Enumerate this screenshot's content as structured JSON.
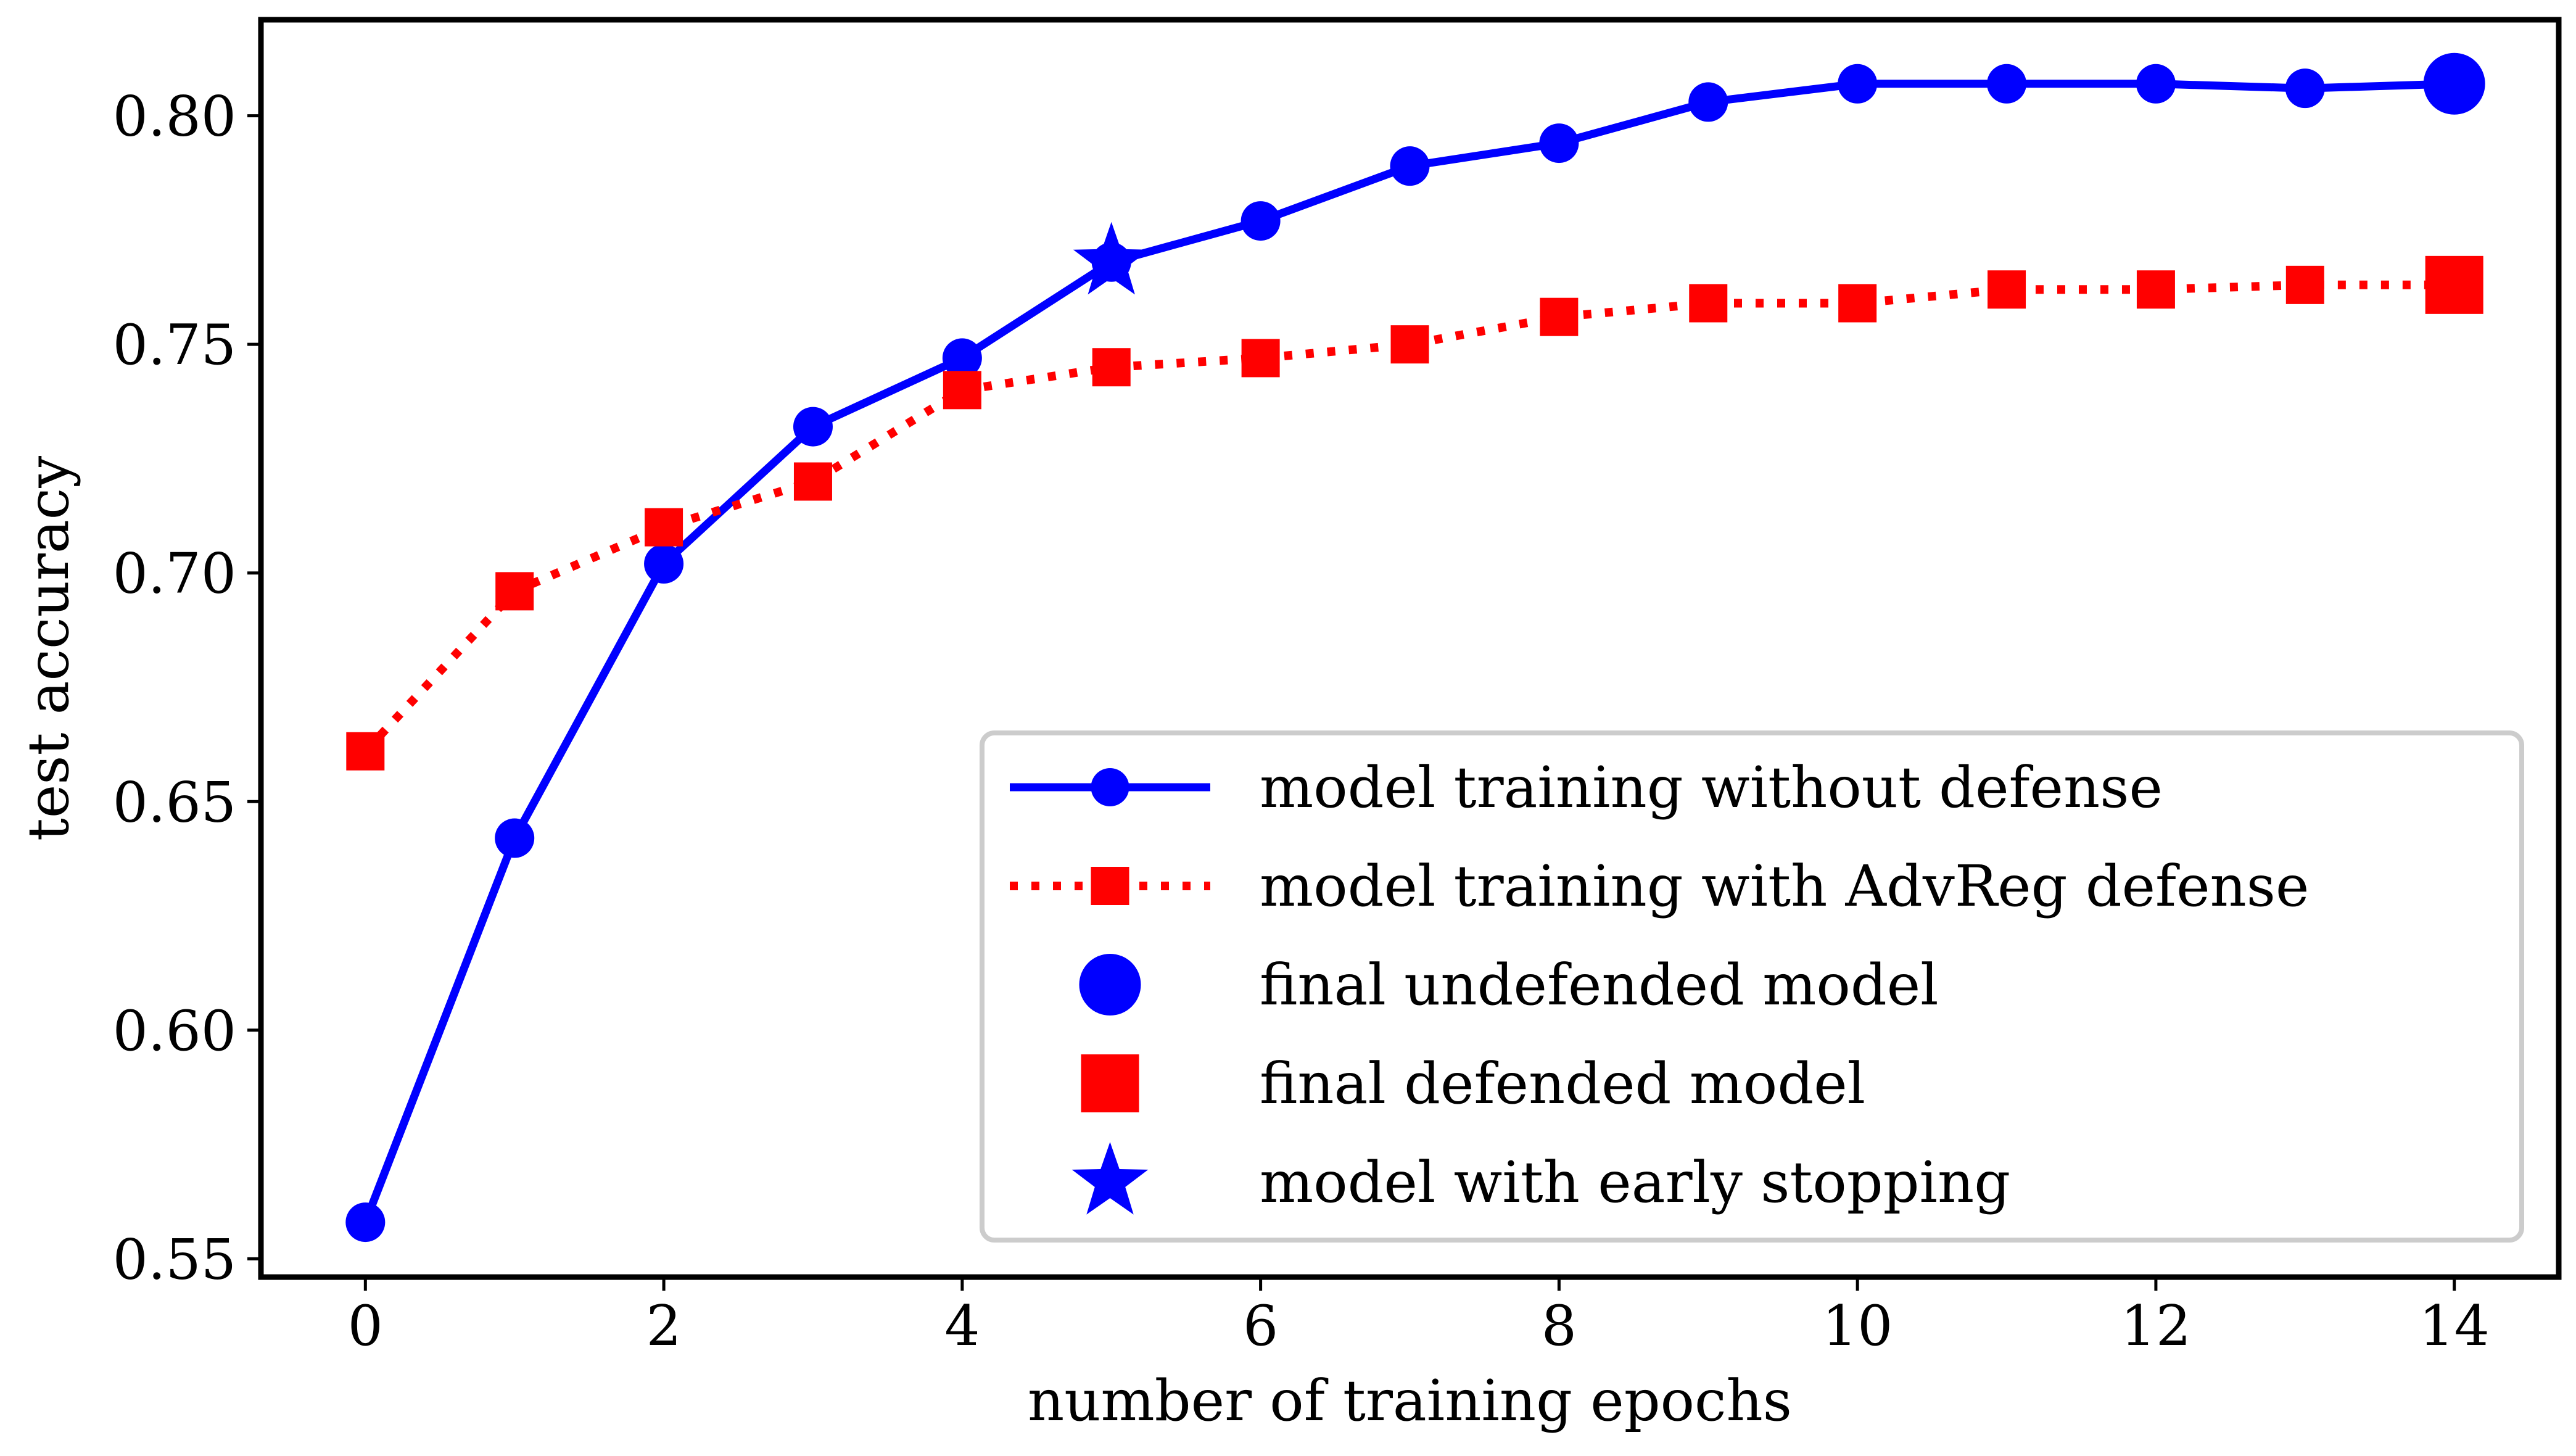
{
  "chart_data": {
    "type": "line",
    "xlabel": "number of training epochs",
    "ylabel": "test accuracy",
    "xlim": [
      -0.7,
      14.7
    ],
    "ylim": [
      0.546,
      0.821
    ],
    "xticks": [
      0,
      2,
      4,
      6,
      8,
      10,
      12,
      14
    ],
    "xtick_labels": [
      "0",
      "2",
      "4",
      "6",
      "8",
      "10",
      "12",
      "14"
    ],
    "yticks": [
      0.55,
      0.6,
      0.65,
      0.7,
      0.75,
      0.8
    ],
    "ytick_labels": [
      "0.55",
      "0.60",
      "0.65",
      "0.70",
      "0.75",
      "0.80"
    ],
    "grid": false,
    "legend_position": "lower-right",
    "series": [
      {
        "name": "model training without defense",
        "color": "#0000ff",
        "line_style": "solid",
        "marker": "circle",
        "x": [
          0,
          1,
          2,
          3,
          4,
          5,
          6,
          7,
          8,
          9,
          10,
          11,
          12,
          13,
          14
        ],
        "y": [
          0.558,
          0.642,
          0.702,
          0.732,
          0.747,
          0.768,
          0.777,
          0.789,
          0.794,
          0.803,
          0.807,
          0.807,
          0.807,
          0.806,
          0.807
        ]
      },
      {
        "name": "model training with AdvReg defense",
        "color": "#ff0000",
        "line_style": "dotted",
        "marker": "square",
        "x": [
          0,
          1,
          2,
          3,
          4,
          5,
          6,
          7,
          8,
          9,
          10,
          11,
          12,
          13,
          14
        ],
        "y": [
          0.661,
          0.696,
          0.71,
          0.72,
          0.74,
          0.745,
          0.747,
          0.75,
          0.756,
          0.759,
          0.759,
          0.762,
          0.762,
          0.763,
          0.763
        ]
      }
    ],
    "highlights": [
      {
        "name": "final undefended model",
        "marker": "circle",
        "color": "#0000ff",
        "x": 14,
        "y": 0.807
      },
      {
        "name": "final defended model",
        "marker": "square",
        "color": "#ff0000",
        "x": 14,
        "y": 0.763
      },
      {
        "name": "model with early stopping",
        "marker": "star",
        "color": "#0000ff",
        "x": 5,
        "y": 0.768
      }
    ]
  }
}
